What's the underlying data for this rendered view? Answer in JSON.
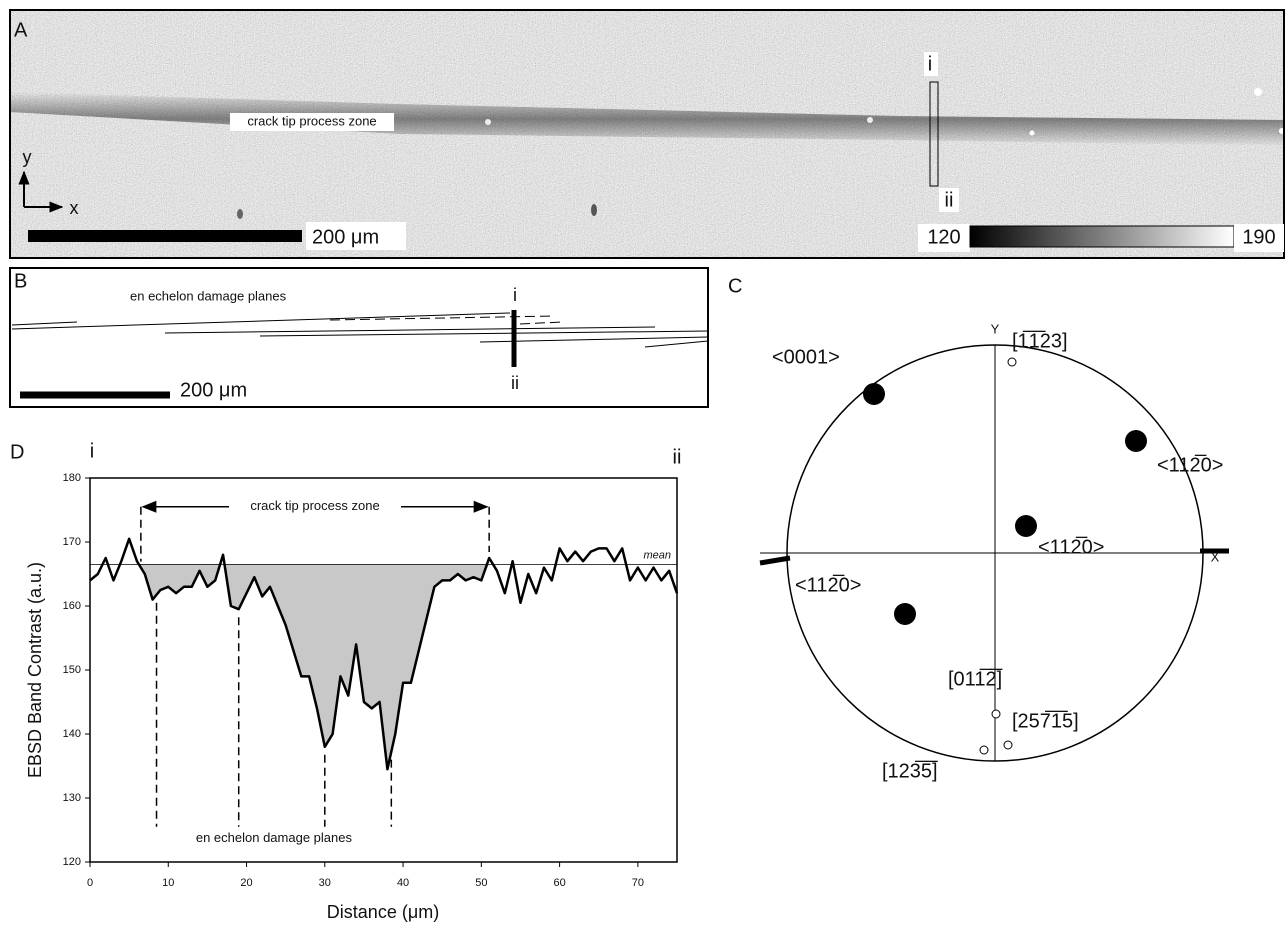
{
  "panels": {
    "A": {
      "letter": "A",
      "zone_label": "crack tip process zone",
      "axis_y": "y",
      "axis_x": "x",
      "scale_label": "200 μm",
      "marker_top": "i",
      "marker_bottom": "ii",
      "colorbar": {
        "min": 120,
        "max": 190
      }
    },
    "B": {
      "letter": "B",
      "title": "en echelon damage planes",
      "marker_top": "i",
      "marker_bottom": "ii",
      "scale_label": "200 μm"
    },
    "C": {
      "letter": "C",
      "axis_y": "Y",
      "axis_x": "X",
      "labels": [
        "<0001>",
        "[1̅1̅23]",
        "<112̅0>",
        "<112̅0>",
        "<112̅0>",
        "[011̅2̅]",
        "[257̅1̅5]",
        "[123̅5̅]"
      ]
    }
  },
  "chart_data": {
    "type": "line",
    "panel_letter": "D",
    "left_marker": "i",
    "right_marker": "ii",
    "x_label": "Distance (μm)",
    "y_label": "EBSD Band Contrast (a.u.)",
    "x": [
      0,
      1,
      2,
      3,
      4,
      5,
      6,
      7,
      8,
      9,
      10,
      11,
      12,
      13,
      14,
      15,
      16,
      17,
      18,
      19,
      20,
      21,
      22,
      23,
      24,
      25,
      26,
      27,
      28,
      29,
      30,
      31,
      32,
      33,
      34,
      35,
      36,
      37,
      38,
      39,
      40,
      41,
      42,
      43,
      44,
      45,
      46,
      47,
      48,
      49,
      50,
      51,
      52,
      53,
      54,
      55,
      56,
      57,
      58,
      59,
      60,
      61,
      62,
      63,
      64,
      65,
      66,
      67,
      68,
      69,
      70,
      71,
      72,
      73,
      74,
      75
    ],
    "values": [
      164,
      165,
      167.5,
      164,
      167,
      170.5,
      167,
      165,
      161,
      162.5,
      163,
      162,
      163,
      163,
      165.5,
      163,
      164,
      168,
      160,
      159.5,
      162,
      164.5,
      161.5,
      163,
      160,
      157,
      153,
      149,
      149,
      144,
      138,
      140,
      149,
      146,
      154,
      145,
      144,
      145,
      134.5,
      140,
      148,
      148,
      153,
      158,
      163,
      164,
      164,
      165,
      164,
      164.5,
      164,
      167.5,
      165.5,
      162,
      167,
      160.5,
      165,
      162,
      166,
      164,
      169,
      167,
      168.5,
      167,
      168.5,
      169,
      169,
      167,
      169,
      164,
      166,
      164,
      166,
      164,
      165.5,
      162
    ],
    "color": "#000000",
    "fill_color": "#c8c8c8",
    "xlim": [
      0,
      75
    ],
    "xticks": [
      0,
      10,
      20,
      30,
      40,
      50,
      60,
      70
    ],
    "ylim": [
      120,
      180
    ],
    "yticks": [
      120,
      130,
      140,
      150,
      160,
      170,
      180
    ],
    "reference_line": {
      "value": 166.5,
      "label": "mean"
    },
    "process_zone": {
      "label": "crack tip process zone",
      "x": [
        6.5,
        51
      ],
      "y": 175.5
    },
    "damage_planes": {
      "label": "en echelon damage planes",
      "x": [
        8.5,
        19,
        30,
        38.5
      ],
      "y": 125.5
    }
  }
}
